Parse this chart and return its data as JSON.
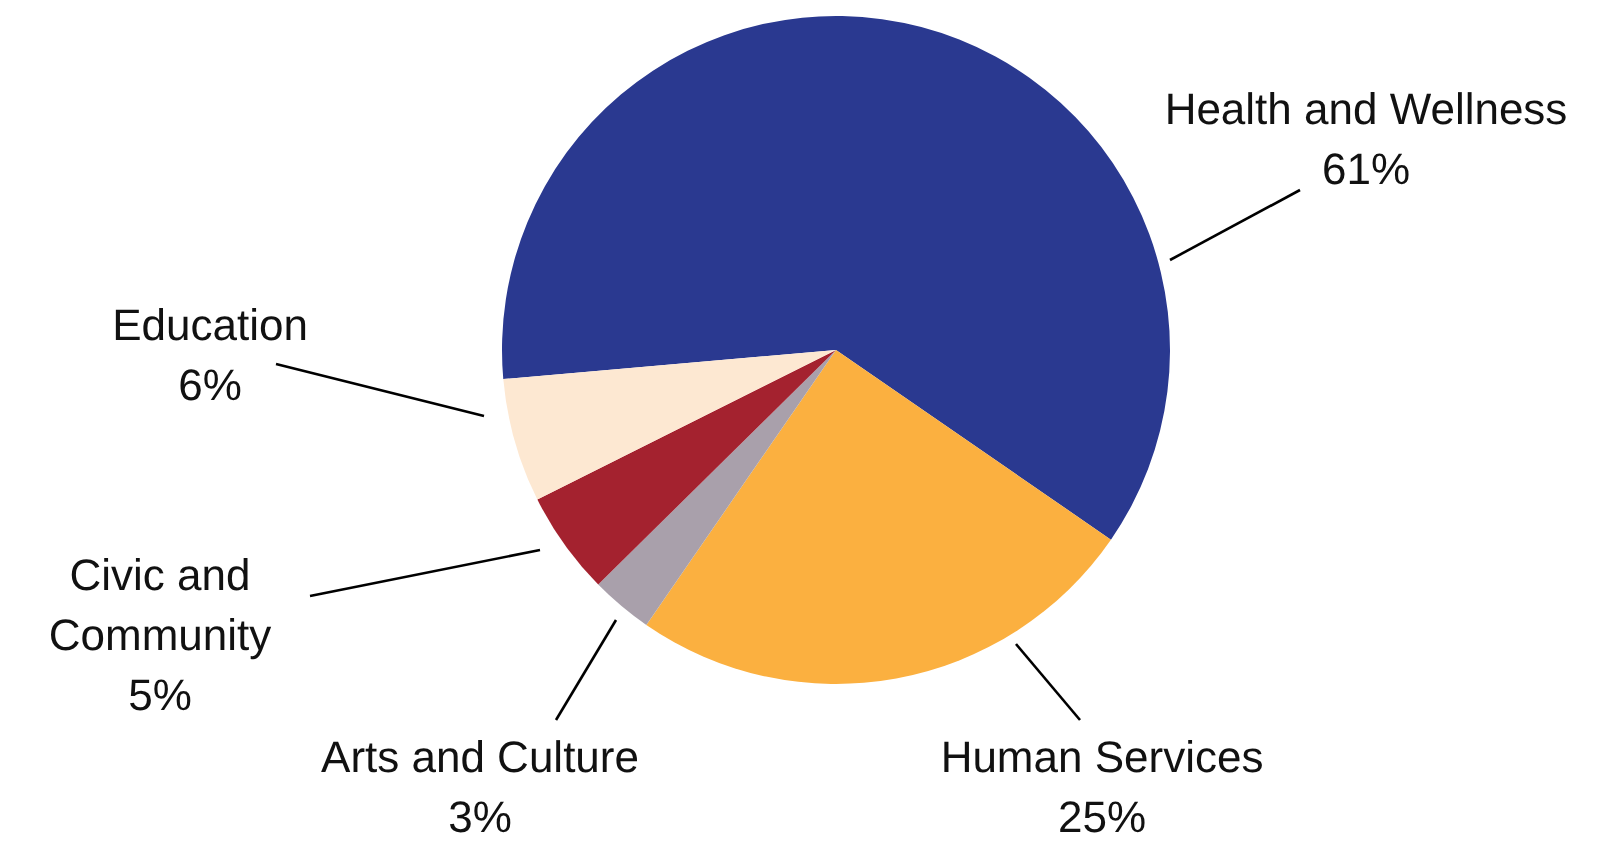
{
  "chart_data": {
    "type": "pie",
    "categories": [
      "Health and Wellness",
      "Human Services",
      "Arts and Culture",
      "Civic and Community",
      "Education"
    ],
    "values": [
      61,
      25,
      3,
      5,
      6
    ],
    "value_labels": [
      "61%",
      "25%",
      "3%",
      "5%",
      "6%"
    ],
    "colors": [
      "#2a3990",
      "#fbb040",
      "#a9a0ab",
      "#a4222f",
      "#fde8d2"
    ]
  }
}
